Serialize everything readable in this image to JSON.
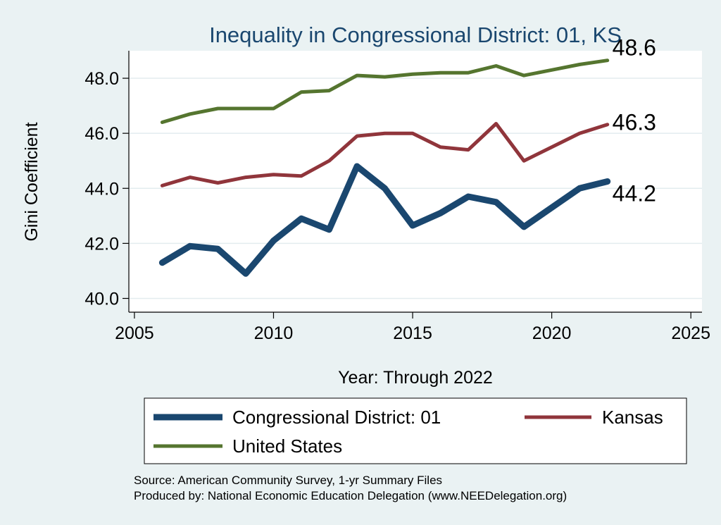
{
  "chart_data": {
    "type": "line",
    "title": "Inequality in Congressional District:  01, KS",
    "xlabel": "Year: Through 2022",
    "ylabel": "Gini Coefficient",
    "xlim": [
      2004.8,
      2025.4
    ],
    "ylim": [
      39.5,
      49.0
    ],
    "x_ticks": [
      2005,
      2010,
      2015,
      2020,
      2025
    ],
    "x_tick_labels": [
      "2005",
      "2010",
      "2015",
      "2020",
      "2025"
    ],
    "y_ticks": [
      40,
      42,
      44,
      46,
      48
    ],
    "y_tick_labels": [
      "40.0",
      "42.0",
      "44.0",
      "46.0",
      "48.0"
    ],
    "grid": true,
    "x": [
      2006,
      2007,
      2008,
      2009,
      2010,
      2011,
      2012,
      2013,
      2014,
      2015,
      2016,
      2017,
      2018,
      2019,
      2020,
      2021,
      2022
    ],
    "series": [
      {
        "name": "Congressional District:  01",
        "color": "#1a476f",
        "values": [
          41.3,
          41.9,
          41.8,
          40.9,
          42.1,
          42.9,
          42.5,
          44.8,
          44.0,
          42.65,
          43.1,
          43.7,
          43.5,
          42.6,
          43.3,
          44.0,
          44.25
        ],
        "end_label": "44.2"
      },
      {
        "name": "Kansas",
        "color": "#90353b",
        "values": [
          44.1,
          44.4,
          44.2,
          44.4,
          44.5,
          44.45,
          45.0,
          45.9,
          46.0,
          46.0,
          45.5,
          45.4,
          46.35,
          45.0,
          45.5,
          46.0,
          46.32
        ],
        "end_label": "46.3"
      },
      {
        "name": "United States",
        "color": "#55752f",
        "values": [
          46.4,
          46.7,
          46.9,
          46.9,
          46.9,
          47.5,
          47.55,
          48.1,
          48.05,
          48.15,
          48.2,
          48.2,
          48.45,
          48.1,
          48.3,
          48.5,
          48.65
        ],
        "end_label": "48.6"
      }
    ],
    "legend": {
      "position": "bottom",
      "entries": [
        {
          "label": "Congressional District:  01",
          "color": "#1a476f"
        },
        {
          "label": "Kansas",
          "color": "#90353b"
        },
        {
          "label": "United States",
          "color": "#55752f"
        }
      ]
    },
    "source_note": "Source: American Community Survey, 1-yr Summary Files",
    "producer_note": "Produced by: National Economic Education Delegation (www.NEEDelegation.org)"
  }
}
